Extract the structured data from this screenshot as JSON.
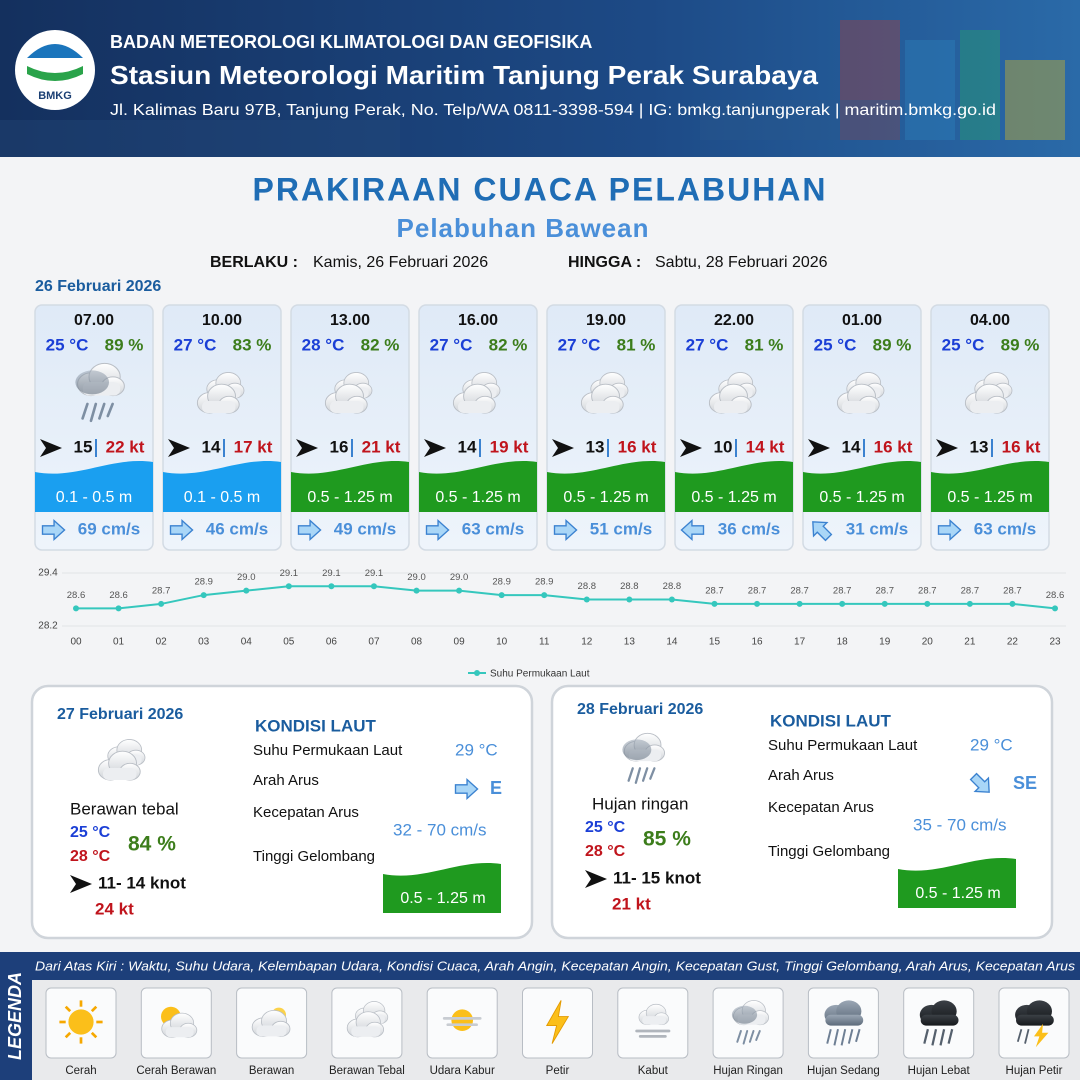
{
  "header": {
    "logo": "BMKG",
    "agency": "BADAN METEOROLOGI KLIMATOLOGI DAN GEOFISIKA",
    "station": "Stasiun Meteorologi Maritim Tanjung Perak Surabaya",
    "address": "Jl. Kalimas Baru 97B, Tanjung Perak, No. Telp/WA 0811-3398-594 | IG: bmkg.tanjungperak | maritim.bmkg.go.id"
  },
  "title": "PRAKIRAAN CUACA PELABUHAN",
  "subtitle": "Pelabuhan Bawean",
  "validity": {
    "from_label": "BERLAKU :",
    "from": "Kamis, 26 Februari 2026",
    "to_label": "HINGGA :",
    "to": "Sabtu, 28 Februari 2026"
  },
  "day1": {
    "date": "26 Februari 2026",
    "slots": [
      {
        "time": "07.00",
        "temperature": "25 °C",
        "humidity": "89 %",
        "wind": "15",
        "gust": "22 kt",
        "wave": "0.1 - 0.5 m",
        "current": "69 cm/s"
      },
      {
        "time": "10.00",
        "temperature": "27 °C",
        "humidity": "83 %",
        "wind": "14",
        "gust": "17 kt",
        "wave": "0.1 - 0.5 m",
        "current": "46 cm/s"
      },
      {
        "time": "13.00",
        "temperature": "28 °C",
        "humidity": "82 %",
        "wind": "16",
        "gust": "21 kt",
        "wave": "0.5 - 1.25 m",
        "current": "49 cm/s"
      },
      {
        "time": "16.00",
        "temperature": "27 °C",
        "humidity": "82 %",
        "wind": "14",
        "gust": "19 kt",
        "wave": "0.5 - 1.25 m",
        "current": "63 cm/s"
      },
      {
        "time": "19.00",
        "temperature": "27 °C",
        "humidity": "81 %",
        "wind": "13",
        "gust": "16 kt",
        "wave": "0.5 - 1.25 m",
        "current": "51 cm/s"
      },
      {
        "time": "22.00",
        "temperature": "27 °C",
        "humidity": "81 %",
        "wind": "10",
        "gust": "14 kt",
        "wave": "0.5 - 1.25 m",
        "current": "36 cm/s"
      },
      {
        "time": "01.00",
        "temperature": "25 °C",
        "humidity": "89 %",
        "wind": "14",
        "gust": "16 kt",
        "wave": "0.5 - 1.25 m",
        "current": "31 cm/s"
      },
      {
        "time": "04.00",
        "temperature": "25 °C",
        "humidity": "89 %",
        "wind": "13",
        "gust": "16 kt",
        "wave": "0.5 - 1.25 m",
        "current": "63 cm/s"
      }
    ]
  },
  "chart_data": {
    "type": "line",
    "categories": [
      "00",
      "01",
      "02",
      "03",
      "04",
      "05",
      "06",
      "07",
      "08",
      "09",
      "10",
      "11",
      "12",
      "13",
      "14",
      "15",
      "16",
      "17",
      "18",
      "19",
      "20",
      "21",
      "22",
      "23"
    ],
    "series": [
      {
        "name": "Suhu Permukaan Laut",
        "color": "#35c7bd",
        "values": [
          28.6,
          28.6,
          28.7,
          28.9,
          29.0,
          29.1,
          29.1,
          29.1,
          29.0,
          29.0,
          28.9,
          28.9,
          28.8,
          28.8,
          28.8,
          28.7,
          28.7,
          28.7,
          28.7,
          28.7,
          28.7,
          28.7,
          28.7,
          28.6
        ],
        "value_labels": [
          "28.6",
          "28.6",
          "28.7",
          "28.9",
          "29.0",
          "29.1",
          "29.1",
          "29.1",
          "29.0",
          "29.0",
          "28.9",
          "28.9",
          "28.8",
          "28.8",
          "28.8",
          "28.7",
          "28.7",
          "28.7",
          "28.7",
          "28.7",
          "28.7",
          "28.7",
          "28.7",
          "28.6"
        ]
      }
    ],
    "ylim": [
      28.2,
      29.4
    ],
    "yticks": [
      28.2,
      29.4
    ],
    "grid": true,
    "legend": "bottom"
  },
  "days": [
    {
      "date": "27 Februari 2026",
      "condition": "Berawan tebal",
      "temp_min": "25 °C",
      "temp_max": "28 °C",
      "humidity": "84 %",
      "wind": "11- 14 knot",
      "gust": "24 kt",
      "sea_heading": "KONDISI LAUT",
      "sst_label": "Suhu Permukaan Laut",
      "sst": "29 °C",
      "dir_label": "Arah Arus",
      "dir": "E",
      "speed_label": "Kecepatan Arus",
      "speed": "32  - 70 cm/s",
      "wave_label": "Tinggi Gelombang",
      "wave": "0.5 - 1.25 m"
    },
    {
      "date": "28 Februari 2026",
      "condition": "Hujan ringan",
      "temp_min": "25 °C",
      "temp_max": "28 °C",
      "humidity": "85 %",
      "wind": "11- 15 knot",
      "gust": "21 kt",
      "sea_heading": "KONDISI LAUT",
      "sst_label": "Suhu Permukaan Laut",
      "sst": "29 °C",
      "dir_label": "Arah Arus",
      "dir": "SE",
      "speed_label": "Kecepatan Arus",
      "speed": "35 - 70 cm/s",
      "wave_label": "Tinggi Gelombang",
      "wave": "0.5 - 1.25 m"
    }
  ],
  "legend": {
    "title": "LEGENDA",
    "description": "Dari Atas Kiri : Waktu, Suhu Udara, Kelembapan Udara, Kondisi Cuaca, Arah Angin, Kecepatan Angin, Kecepatan Gust, Tinggi Gelombang, Arah Arus, Kecepatan Arus",
    "items": [
      "Cerah",
      "Cerah Berawan",
      "Berawan",
      "Berawan Tebal",
      "Udara Kabur",
      "Petir",
      "Kabut",
      "Hujan Ringan",
      "Hujan Sedang",
      "Hujan Lebat",
      "Hujan Petir"
    ]
  }
}
